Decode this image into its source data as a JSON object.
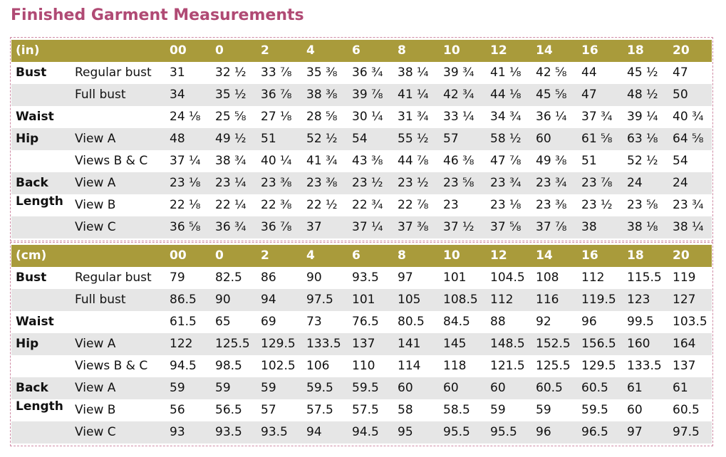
{
  "title": "Finished Garment Measurements",
  "tables": [
    {
      "unit": "(in)",
      "sizes": [
        "00",
        "0",
        "2",
        "4",
        "6",
        "8",
        "10",
        "12",
        "14",
        "16",
        "18",
        "20"
      ],
      "groups": [
        {
          "label": "Bust",
          "rows": [
            {
              "label": "Regular bust",
              "cells": [
                "31",
                "32 ½",
                "33 ⅞",
                "35 ⅜",
                "36 ¾",
                "38 ¼",
                "39 ¾",
                "41 ⅛",
                "42 ⅝",
                "44",
                "45 ½",
                "47"
              ]
            },
            {
              "label": "Full bust",
              "cells": [
                "34",
                "35 ½",
                "36 ⅞",
                "38 ⅜",
                "39 ⅞",
                "41 ¼",
                "42 ¾",
                "44 ⅛",
                "45 ⅝",
                "47",
                "48 ½",
                "50"
              ]
            }
          ]
        },
        {
          "label": "Waist",
          "rows": [
            {
              "cells": [
                "24 ⅛",
                "25 ⅝",
                "27 ⅛",
                "28 ⅝",
                "30 ¼",
                "31 ¾",
                "33 ¼",
                "34 ¾",
                "36 ¼",
                "37 ¾",
                "39 ¼",
                "40 ¾"
              ]
            }
          ]
        },
        {
          "label": "Hip",
          "rows": [
            {
              "label": "View A",
              "cells": [
                "48",
                "49 ½",
                "51",
                "52 ½",
                "54",
                "55 ½",
                "57",
                "58 ½",
                "60",
                "61 ⅝",
                "63 ⅛",
                "64 ⅝"
              ]
            },
            {
              "label": "Views B & C",
              "cells": [
                "37 ¼",
                "38 ¾",
                "40 ¼",
                "41 ¾",
                "43 ⅜",
                "44 ⅞",
                "46 ⅜",
                "47 ⅞",
                "49 ⅜",
                "51",
                "52 ½",
                "54"
              ]
            }
          ]
        },
        {
          "label": "Back Length",
          "rows": [
            {
              "label": "View A",
              "cells": [
                "23 ⅛",
                "23 ¼",
                "23 ⅜",
                "23 ⅜",
                "23 ½",
                "23 ½",
                "23 ⅝",
                "23 ¾",
                "23 ¾",
                "23 ⅞",
                "24",
                "24"
              ]
            },
            {
              "label": "View B",
              "cells": [
                "22 ⅛",
                "22 ¼",
                "22 ⅜",
                "22 ½",
                "22 ¾",
                "22 ⅞",
                "23",
                "23 ⅛",
                "23 ⅜",
                "23 ½",
                "23 ⅝",
                "23 ¾"
              ]
            },
            {
              "label": "View C",
              "cells": [
                "36 ⅝",
                "36 ¾",
                "36 ⅞",
                "37",
                "37 ¼",
                "37 ⅜",
                "37 ½",
                "37 ⅝",
                "37 ⅞",
                "38",
                "38 ⅛",
                "38 ¼"
              ]
            }
          ]
        }
      ]
    },
    {
      "unit": "(cm)",
      "sizes": [
        "00",
        "0",
        "2",
        "4",
        "6",
        "8",
        "10",
        "12",
        "14",
        "16",
        "18",
        "20"
      ],
      "groups": [
        {
          "label": "Bust",
          "rows": [
            {
              "label": "Regular bust",
              "cells": [
                "79",
                "82.5",
                "86",
                "90",
                "93.5",
                "97",
                "101",
                "104.5",
                "108",
                "112",
                "115.5",
                "119"
              ]
            },
            {
              "label": "Full bust",
              "cells": [
                "86.5",
                "90",
                "94",
                "97.5",
                "101",
                "105",
                "108.5",
                "112",
                "116",
                "119.5",
                "123",
                "127"
              ]
            }
          ]
        },
        {
          "label": "Waist",
          "rows": [
            {
              "cells": [
                "61.5",
                "65",
                "69",
                "73",
                "76.5",
                "80.5",
                "84.5",
                "88",
                "92",
                "96",
                "99.5",
                "103.5"
              ]
            }
          ]
        },
        {
          "label": "Hip",
          "rows": [
            {
              "label": "View A",
              "cells": [
                "122",
                "125.5",
                "129.5",
                "133.5",
                "137",
                "141",
                "145",
                "148.5",
                "152.5",
                "156.5",
                "160",
                "164"
              ]
            },
            {
              "label": "Views B & C",
              "cells": [
                "94.5",
                "98.5",
                "102.5",
                "106",
                "110",
                "114",
                "118",
                "121.5",
                "125.5",
                "129.5",
                "133.5",
                "137"
              ]
            }
          ]
        },
        {
          "label": "Back Length",
          "rows": [
            {
              "label": "View A",
              "cells": [
                "59",
                "59",
                "59",
                "59.5",
                "59.5",
                "60",
                "60",
                "60",
                "60.5",
                "60.5",
                "61",
                "61"
              ]
            },
            {
              "label": "View B",
              "cells": [
                "56",
                "56.5",
                "57",
                "57.5",
                "57.5",
                "58",
                "58.5",
                "59",
                "59",
                "59.5",
                "60",
                "60.5"
              ]
            },
            {
              "label": "View C",
              "cells": [
                "93",
                "93.5",
                "93.5",
                "94",
                "94.5",
                "95",
                "95.5",
                "95.5",
                "96",
                "96.5",
                "97",
                "97.5"
              ]
            }
          ]
        }
      ]
    }
  ]
}
